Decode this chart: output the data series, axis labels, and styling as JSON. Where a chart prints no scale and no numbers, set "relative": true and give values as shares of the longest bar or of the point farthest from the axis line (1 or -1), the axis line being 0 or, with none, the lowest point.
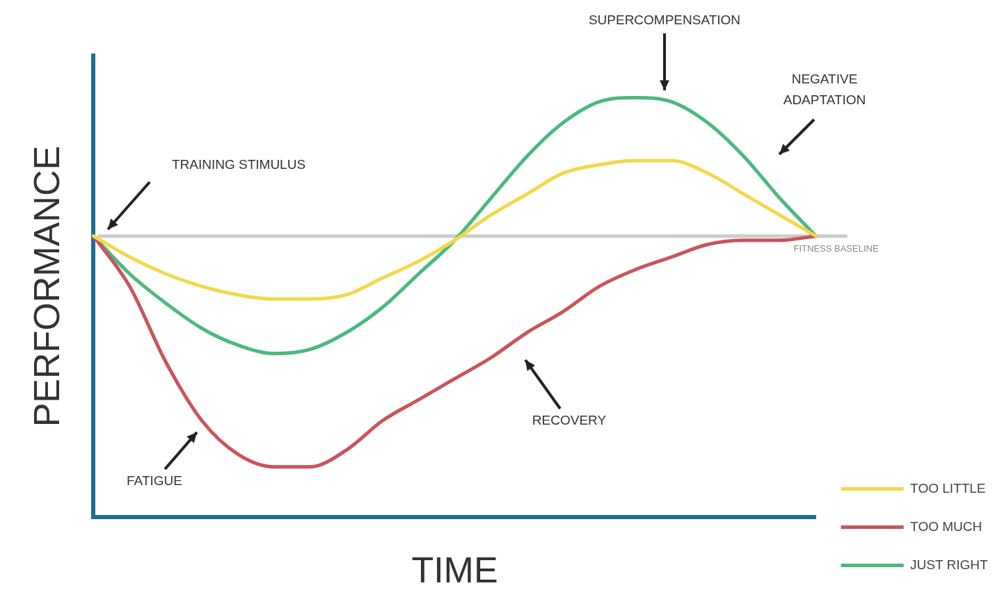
{
  "chart_data": {
    "type": "line",
    "relative": true,
    "xlabel": "TIME",
    "ylabel": "PERFORMANCE",
    "categories": [
      null,
      null,
      null,
      null,
      null,
      null,
      null,
      null,
      null,
      null,
      null,
      null,
      null,
      null,
      null,
      null,
      null,
      null,
      null,
      null,
      null
    ],
    "series": [
      {
        "name": "TOO LITTLE",
        "color": "#f2d84a",
        "values": [
          0.67,
          0.62,
          0.58,
          0.55,
          0.53,
          0.52,
          0.52,
          0.53,
          0.57,
          0.61,
          0.66,
          0.72,
          0.77,
          0.82,
          0.84,
          0.85,
          0.85,
          0.82,
          0.77,
          0.72,
          0.67
        ]
      },
      {
        "name": "TOO MUCH",
        "color": "#c9545a",
        "values": [
          0.67,
          0.55,
          0.37,
          0.23,
          0.15,
          0.12,
          0.12,
          0.16,
          0.23,
          0.28,
          0.33,
          0.38,
          0.44,
          0.49,
          0.55,
          0.59,
          0.62,
          0.65,
          0.66,
          0.66,
          0.67
        ]
      },
      {
        "name": "JUST RIGHT",
        "color": "#4cb87f",
        "values": [
          0.67,
          0.58,
          0.51,
          0.45,
          0.41,
          0.39,
          0.4,
          0.44,
          0.5,
          0.58,
          0.66,
          0.76,
          0.86,
          0.94,
          0.99,
          1,
          0.99,
          0.94,
          0.86,
          0.76,
          0.67
        ]
      }
    ],
    "ref_lines": [
      {
        "axis": "y",
        "value": 0.67,
        "label": "FITNESS BASELINE",
        "color": "#cccccc"
      }
    ],
    "annotations": [
      "TRAINING STIMULUS",
      "SUPERCOMPENSATION",
      "NEGATIVE ADAPTATION",
      "FATIGUE",
      "RECOVERY"
    ],
    "legend": "bottom right",
    "grid": false,
    "line_style": "solid"
  }
}
